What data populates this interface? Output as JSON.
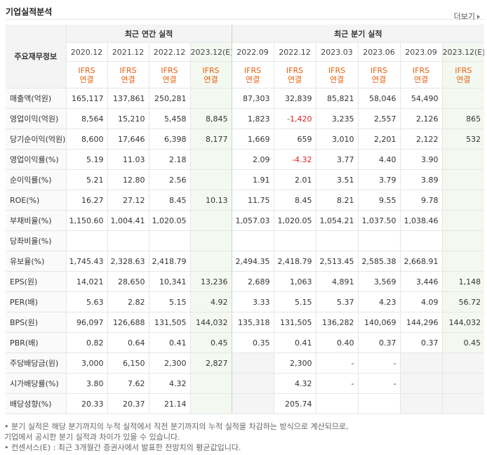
{
  "title": "기업실적분석",
  "more_label": "더보기",
  "header": {
    "item_label": "주요재무정보",
    "annual_group": "최근 연간 실적",
    "quarter_group": "최근 분기 실적",
    "annual_periods": [
      "2020.12",
      "2021.12",
      "2022.12",
      "2023.12(E)"
    ],
    "quarter_periods": [
      "2022.09",
      "2022.12",
      "2023.03",
      "2023.06",
      "2023.09",
      "2023.12(E)"
    ],
    "std_line1": "IFRS",
    "std_line2": "연결"
  },
  "rows": [
    {
      "label": "매출액(억원)",
      "values": [
        "165,117",
        "137,861",
        "250,281",
        "",
        "87,303",
        "32,839",
        "85,821",
        "58,046",
        "54,490",
        ""
      ]
    },
    {
      "label": "영업이익(억원)",
      "values": [
        "8,564",
        "15,210",
        "5,458",
        "8,845",
        "1,823",
        "-1,420",
        "3,235",
        "2,557",
        "2,126",
        "865"
      ]
    },
    {
      "label": "당기순이익(억원)",
      "values": [
        "8,600",
        "17,646",
        "6,398",
        "8,177",
        "1,669",
        "659",
        "3,010",
        "2,201",
        "2,122",
        "532"
      ]
    },
    {
      "label": "영업이익률(%)",
      "values": [
        "5.19",
        "11.03",
        "2.18",
        "",
        "2.09",
        "-4.32",
        "3.77",
        "4.40",
        "3.90",
        ""
      ]
    },
    {
      "label": "순이익률(%)",
      "values": [
        "5.21",
        "12.80",
        "2.56",
        "",
        "1.91",
        "2.01",
        "3.51",
        "3.79",
        "3.89",
        ""
      ]
    },
    {
      "label": "ROE(%)",
      "values": [
        "16.27",
        "27.12",
        "8.45",
        "10.13",
        "11.75",
        "8.45",
        "8.21",
        "9.55",
        "9.78",
        ""
      ]
    },
    {
      "label": "부채비율(%)",
      "values": [
        "1,150.60",
        "1,004.41",
        "1,020.05",
        "",
        "1,057.03",
        "1,020.05",
        "1,054.21",
        "1,037.50",
        "1,038.46",
        ""
      ]
    },
    {
      "label": "당좌비율(%)",
      "values": [
        "",
        "",
        "",
        "",
        "",
        "",
        "",
        "",
        "",
        ""
      ]
    },
    {
      "label": "유보율(%)",
      "values": [
        "1,745.43",
        "2,328.63",
        "2,418.79",
        "",
        "2,494.35",
        "2,418.79",
        "2,513.45",
        "2,585.38",
        "2,668.91",
        ""
      ]
    },
    {
      "label": "EPS(원)",
      "values": [
        "14,021",
        "28,650",
        "10,341",
        "13,236",
        "2,689",
        "1,063",
        "4,891",
        "3,569",
        "3,446",
        "1,148"
      ]
    },
    {
      "label": "PER(배)",
      "values": [
        "5.63",
        "2.82",
        "5.15",
        "4.92",
        "3.33",
        "5.15",
        "5.37",
        "4.23",
        "4.09",
        "56.72"
      ]
    },
    {
      "label": "BPS(원)",
      "values": [
        "96,097",
        "126,688",
        "131,505",
        "144,032",
        "135,318",
        "131,505",
        "136,282",
        "140,069",
        "144,296",
        "144,032"
      ]
    },
    {
      "label": "PBR(배)",
      "values": [
        "0.82",
        "0.64",
        "0.41",
        "0.45",
        "0.35",
        "0.41",
        "0.40",
        "0.37",
        "0.37",
        "0.45"
      ]
    },
    {
      "label": "주당배당금(원)",
      "values": [
        "3,000",
        "6,150",
        "2,300",
        "2,827",
        "",
        "2,300",
        "-",
        "-",
        "",
        ""
      ]
    },
    {
      "label": "시가배당률(%)",
      "values": [
        "3.80",
        "7.62",
        "4.32",
        "",
        "",
        "4.32",
        "-",
        "-",
        "",
        ""
      ]
    },
    {
      "label": "배당성향(%)",
      "values": [
        "20.33",
        "20.37",
        "21.14",
        "",
        "",
        "205.74",
        "",
        "",
        "",
        ""
      ]
    }
  ],
  "notes": [
    "• 분기 실적은 해당 분기까지의 누적 실적에서 직전 분기까지의 누적 실적을 차감하는 방식으로 계산되므로,",
    "   기업에서 공시한 분기 실적과 차이가 있을 수 있습니다.",
    "• 컨센서스(E) : 최근 3개월간 증권사에서 발표한 전망치의 평균값입니다."
  ]
}
